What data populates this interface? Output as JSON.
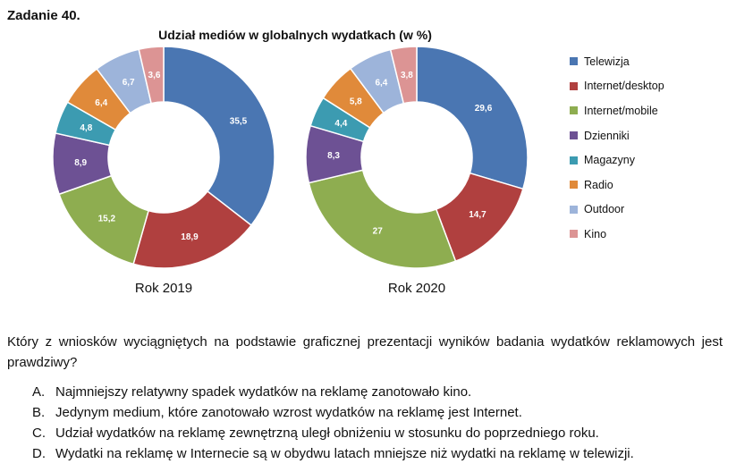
{
  "task_title": "Zadanie 40.",
  "chart_data": {
    "type": "pie",
    "title": "Udział mediów w globalnych wydatkach (w %)",
    "categories": [
      "Telewizja",
      "Internet/desktop",
      "Internet/mobile",
      "Dzienniki",
      "Magazyny",
      "Radio",
      "Outdoor",
      "Kino"
    ],
    "colors": [
      "#4a76b2",
      "#b0403f",
      "#8ead50",
      "#6d5194",
      "#3c9bb1",
      "#e08a3a",
      "#9db4da",
      "#dc9494"
    ],
    "series": [
      {
        "name": "Rok 2019",
        "values": [
          35.5,
          18.9,
          15.2,
          8.9,
          4.8,
          6.4,
          6.7,
          3.6
        ],
        "labels": [
          "35,5",
          "18,9",
          "15,2",
          "8,9",
          "4,8",
          "6,4",
          "6,7",
          "3,6"
        ]
      },
      {
        "name": "Rok 2020",
        "values": [
          29.6,
          14.7,
          27,
          8.3,
          4.4,
          5.8,
          6.4,
          3.8
        ],
        "labels": [
          "29,6",
          "14,7",
          "27",
          "8,3",
          "4,4",
          "5,8",
          "6,4",
          "3,8"
        ]
      }
    ],
    "legend_position": "right"
  },
  "question": "Który z wniosków wyciągniętych na podstawie graficznej prezentacji wyników badania wydatków reklamowych jest prawdziwy?",
  "answers": [
    {
      "letter": "A.",
      "text": "Najmniejszy relatywny spadek wydatków na reklamę zanotowało kino."
    },
    {
      "letter": "B.",
      "text": "Jedynym medium, które zanotowało wzrost wydatków na reklamę jest Internet."
    },
    {
      "letter": "C.",
      "text": "Udział wydatków na reklamę zewnętrzną uległ obniżeniu w stosunku do poprzedniego roku."
    },
    {
      "letter": "D.",
      "text": "Wydatki na reklamę w Internecie są w obydwu latach mniejsze niż wydatki na reklamę w telewizji."
    }
  ]
}
